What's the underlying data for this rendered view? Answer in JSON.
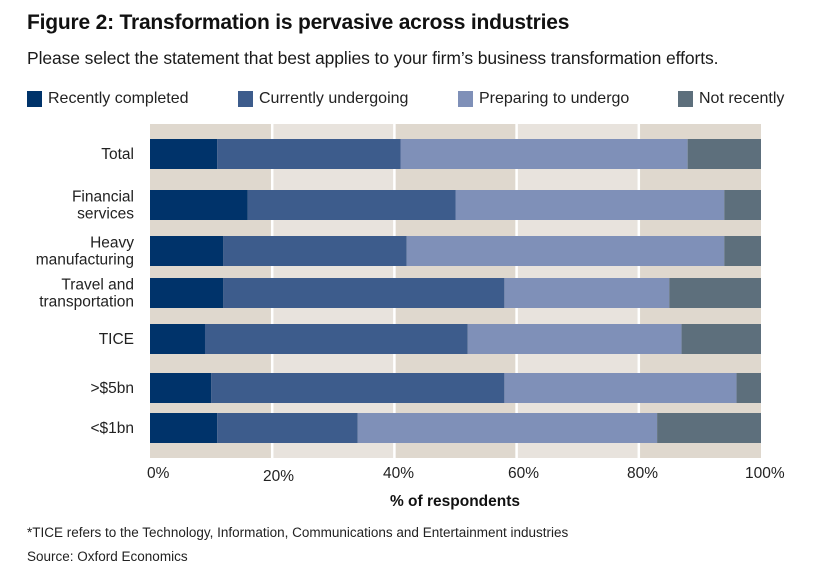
{
  "header": {
    "title": "Figure 2: Transformation is pervasive across industries",
    "subtitle": "Please select the statement that best applies to your firm’s business transformation efforts."
  },
  "footer": {
    "note": "*TICE refers to the Technology, Information, Communications and Entertainment industries",
    "source": "Source: Oxford Economics"
  },
  "chart_data": {
    "type": "bar",
    "orientation": "horizontal",
    "stacked": true,
    "title": "Figure 2: Transformation is pervasive across industries",
    "subtitle": "Please select the statement that best applies to your firm’s business transformation efforts.",
    "xlabel": "% of respondents",
    "ylabel": "",
    "xlim": [
      0,
      100
    ],
    "xticks": [
      "0%",
      "20%",
      "40%",
      "60%",
      "80%",
      "100%"
    ],
    "xtick_values": [
      0,
      20,
      40,
      60,
      80,
      100
    ],
    "grid": true,
    "legend_position": "top",
    "categories": [
      [
        "Total"
      ],
      [
        "Financial",
        "services"
      ],
      [
        "Heavy",
        "manufacturing"
      ],
      [
        "Travel and",
        "transportation"
      ],
      [
        "TICE"
      ],
      [
        ">$5bn"
      ],
      [
        "<$1bn"
      ]
    ],
    "series": [
      {
        "name": "Recently completed",
        "color": "#00336a",
        "values": [
          11,
          16,
          12,
          12,
          9,
          10,
          11
        ]
      },
      {
        "name": "Currently undergoing",
        "color": "#3d5c8c",
        "values": [
          30,
          34,
          30,
          46,
          43,
          48,
          23
        ]
      },
      {
        "name": "Preparing to undergo",
        "color": "#7f90b8",
        "values": [
          47,
          44,
          52,
          27,
          35,
          38,
          49
        ]
      },
      {
        "name": "Not recently",
        "color": "#5d6f7c",
        "values": [
          12,
          6,
          6,
          15,
          13,
          4,
          17
        ]
      }
    ],
    "band_colors": [
      "#dfd8ce",
      "#e8e3dd"
    ]
  }
}
